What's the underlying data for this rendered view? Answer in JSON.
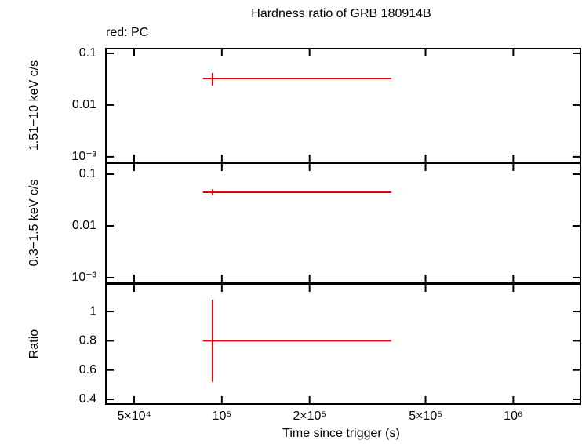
{
  "chart_data": [
    {
      "type": "errorbar",
      "title": "Hardness ratio of GRB 180914B",
      "annotation": "red: PC",
      "ylabel": "1.51−10 keV c/s",
      "ylog": true,
      "xlog": true,
      "xlim": [
        40000,
        1700000
      ],
      "xticks": [
        50000,
        100000,
        200000,
        500000,
        1000000
      ],
      "ylim": [
        0.00078,
        0.123
      ],
      "yticks": [
        0.1,
        0.01,
        {
          "value": 0.001,
          "label": "10⁻³"
        }
      ],
      "series": [
        {
          "color": "#ee0000",
          "x": [
            92900
          ],
          "xerr_minus": [
            6800
          ],
          "xerr_plus": [
            288100
          ],
          "values": [
            0.0327
          ],
          "yerr": [
            0.009
          ]
        }
      ]
    },
    {
      "type": "errorbar",
      "ylabel": "0.3−1.5 keV c/s",
      "ylog": true,
      "xlog": true,
      "xlim": [
        40000,
        1700000
      ],
      "xticks": [
        50000,
        100000,
        200000,
        500000,
        1000000
      ],
      "ylim": [
        0.00081,
        0.163
      ],
      "yticks": [
        0.1,
        0.01,
        {
          "value": 0.001,
          "label": "10⁻³"
        }
      ],
      "series": [
        {
          "color": "#ee0000",
          "x": [
            92900
          ],
          "xerr_minus": [
            6800
          ],
          "xerr_plus": [
            288100
          ],
          "values": [
            0.0449
          ],
          "yerr": [
            0.006
          ]
        }
      ]
    },
    {
      "type": "errorbar",
      "ylabel": "Ratio",
      "xlabel": "Time since trigger (s)",
      "ylog": false,
      "xlog": true,
      "xlim": [
        40000,
        1700000
      ],
      "xticks": [
        {
          "value": 50000,
          "label": "5×10⁴"
        },
        {
          "value": 100000,
          "label": "10⁵"
        },
        {
          "value": 200000,
          "label": "2×10⁵"
        },
        {
          "value": 500000,
          "label": "5×10⁵"
        },
        {
          "value": 1000000,
          "label": "10⁶"
        }
      ],
      "ylim": [
        0.368,
        1.188
      ],
      "yticks": [
        1,
        0.8,
        0.6,
        0.4
      ],
      "series": [
        {
          "color": "#ee0000",
          "x": [
            92900
          ],
          "xerr_minus": [
            6800
          ],
          "xerr_plus": [
            288100
          ],
          "values": [
            0.8
          ],
          "yerr": [
            0.28
          ]
        }
      ]
    }
  ]
}
